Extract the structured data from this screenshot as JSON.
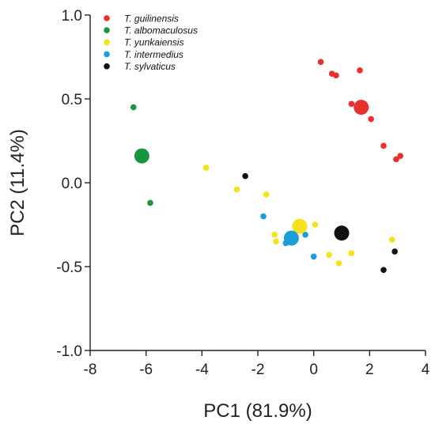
{
  "chart_data": {
    "type": "scatter",
    "xlabel": "PC1 (81.9%)",
    "ylabel": "PC2 (11.4%)",
    "xlim": [
      -8,
      4
    ],
    "ylim": [
      -1.0,
      1.0
    ],
    "xticks": [
      -8,
      -6,
      -4,
      -2,
      0,
      2,
      4
    ],
    "yticks": [
      -1.0,
      -0.5,
      0.0,
      0.5,
      1.0
    ],
    "xtick_labels": [
      "-8",
      "-6",
      "-4",
      "-2",
      "0",
      "2",
      "4"
    ],
    "ytick_labels": [
      "-1.0",
      "-0.5",
      "0.0",
      "0.5",
      "1.0"
    ],
    "grid": false,
    "legend_position": "top-left",
    "series": [
      {
        "name": "T. guilinensis",
        "color": "#e8302e",
        "points": [
          [
            0.25,
            0.72
          ],
          [
            0.65,
            0.65
          ],
          [
            0.8,
            0.64
          ],
          [
            1.65,
            0.67
          ],
          [
            1.35,
            0.47
          ],
          [
            2.05,
            0.38
          ],
          [
            2.5,
            0.22
          ],
          [
            3.1,
            0.16
          ],
          [
            2.95,
            0.14
          ]
        ],
        "centroid": [
          1.7,
          0.45
        ]
      },
      {
        "name": "T. albomaculosus",
        "color": "#17963f",
        "points": [
          [
            -6.45,
            0.45
          ],
          [
            -5.85,
            -0.12
          ]
        ],
        "centroid": [
          -6.15,
          0.16
        ]
      },
      {
        "name": "T. yunkaiensis",
        "color": "#f5e21c",
        "points": [
          [
            -3.85,
            0.09
          ],
          [
            -2.75,
            -0.04
          ],
          [
            -1.7,
            -0.07
          ],
          [
            -1.4,
            -0.31
          ],
          [
            -1.35,
            -0.35
          ],
          [
            0.05,
            -0.25
          ],
          [
            0.55,
            -0.43
          ],
          [
            0.9,
            -0.48
          ],
          [
            1.35,
            -0.42
          ],
          [
            2.8,
            -0.34
          ]
        ],
        "centroid": [
          -0.5,
          -0.26
        ]
      },
      {
        "name": "T. intermedius",
        "color": "#1a9ed8",
        "points": [
          [
            -1.8,
            -0.2
          ],
          [
            -1.0,
            -0.36
          ],
          [
            -0.3,
            -0.31
          ],
          [
            0.0,
            -0.44
          ]
        ],
        "centroid": [
          -0.8,
          -0.33
        ]
      },
      {
        "name": "T. sylvaticus",
        "color": "#111111",
        "points": [
          [
            -2.45,
            0.04
          ],
          [
            2.9,
            -0.41
          ],
          [
            2.5,
            -0.52
          ]
        ],
        "centroid": [
          1.0,
          -0.3
        ]
      }
    ]
  }
}
